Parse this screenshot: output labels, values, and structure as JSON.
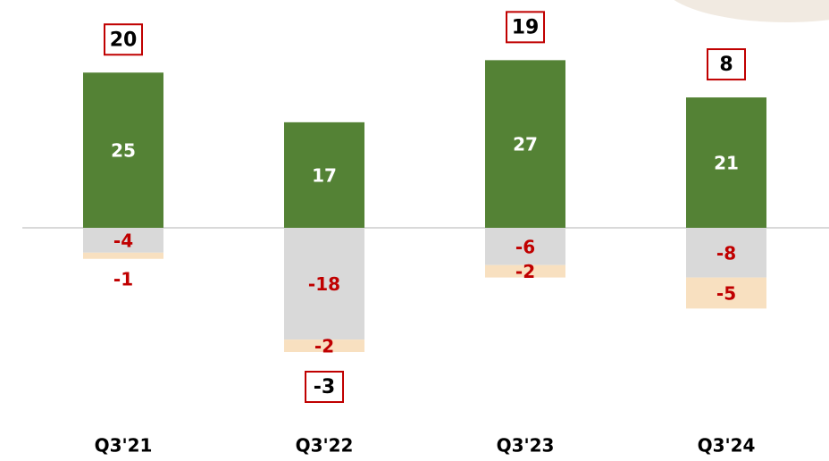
{
  "chart_data": {
    "type": "bar",
    "stacked": true,
    "categories": [
      "Q3'21",
      "Q3'22",
      "Q3'23",
      "Q3'24"
    ],
    "series": [
      {
        "color": "#548235",
        "values": [
          25,
          17,
          27,
          21
        ]
      },
      {
        "color": "#d9d9d9",
        "values": [
          -4,
          -18,
          -6,
          -8
        ]
      },
      {
        "color": "#f8e0c0",
        "values": [
          -1,
          -2,
          -2,
          -5
        ]
      }
    ],
    "totals": [
      20,
      -3,
      19,
      8
    ]
  }
}
